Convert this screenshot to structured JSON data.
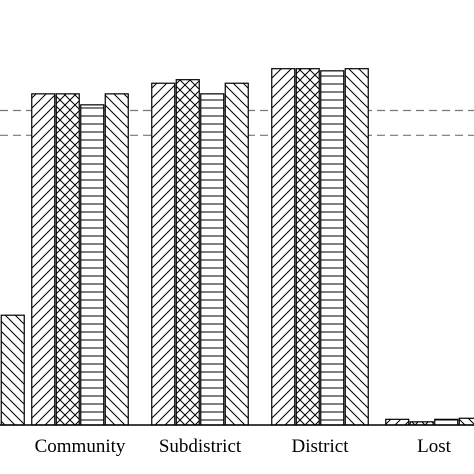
{
  "chart_data": {
    "type": "bar",
    "categories": [
      "",
      "Community",
      "Subdistrict",
      "District",
      "Lost"
    ],
    "series": [
      {
        "values": [
          null,
          93.5,
          96.5,
          100.6,
          1.6
        ],
        "pattern": "diag-right"
      },
      {
        "values": [
          null,
          93.5,
          97.5,
          100.6,
          0.9
        ],
        "pattern": "crosshatch"
      },
      {
        "values": [
          null,
          90.4,
          93.5,
          100.0,
          1.6
        ],
        "pattern": "horizontal"
      },
      {
        "values": [
          31.0,
          93.5,
          96.5,
          100.6,
          1.9
        ],
        "pattern": "diag-left"
      }
    ],
    "reference_lines": [
      88.8,
      81.8
    ],
    "reference_line_style": "dashed",
    "ylim": [
      0,
      120
    ],
    "grid": false,
    "legend": "none",
    "colors": {
      "bar_fill": "#ffffff",
      "stroke": "#000000",
      "reference_line": "#777777"
    }
  }
}
